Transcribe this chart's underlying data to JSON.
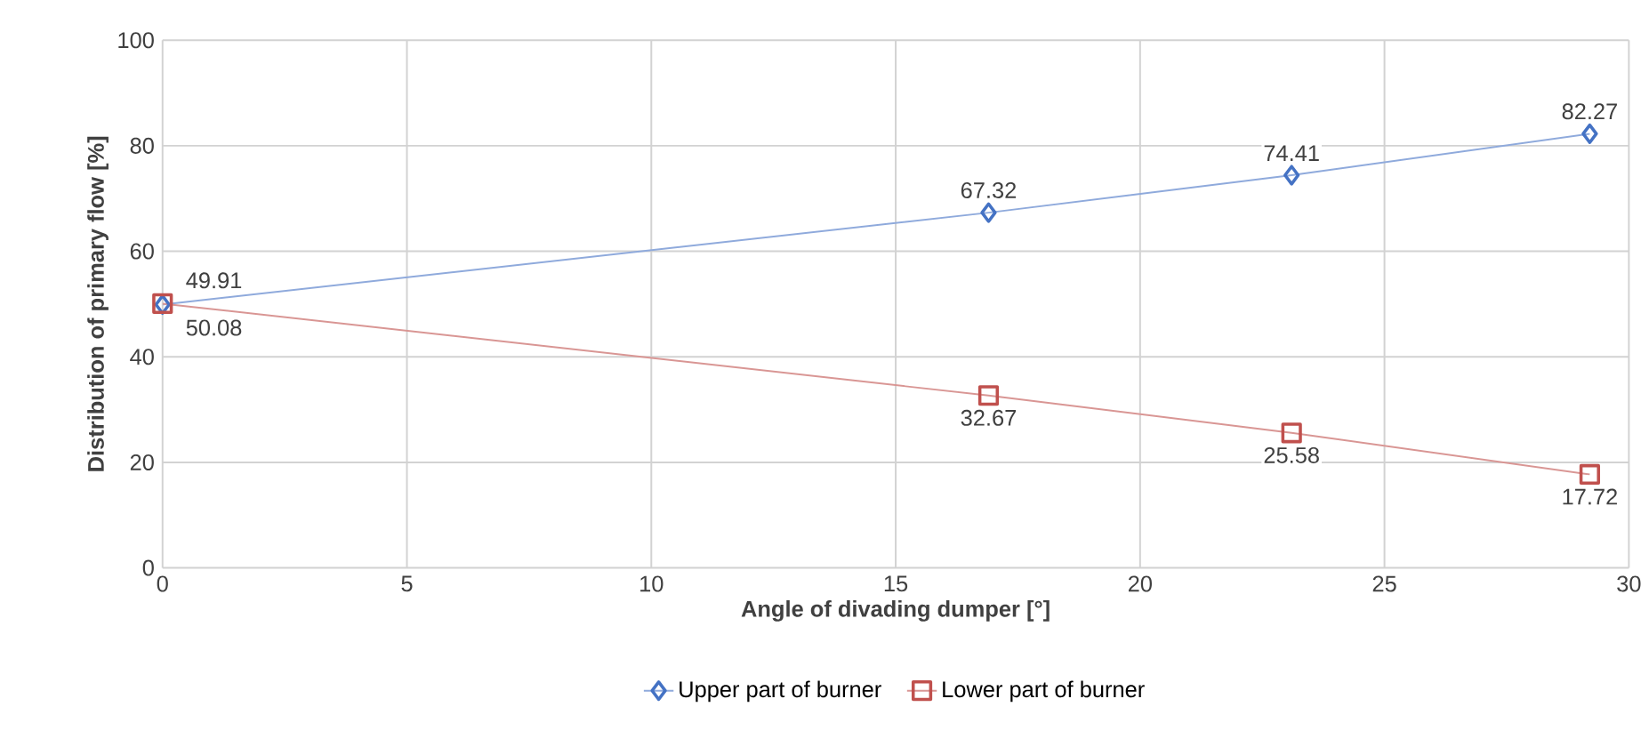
{
  "chart_data": {
    "type": "line",
    "xlabel": "Angle of divading dumper [°]",
    "ylabel": "Distribution of primary flow [%]",
    "xlim": [
      0,
      30
    ],
    "ylim": [
      0,
      100
    ],
    "xticks": [
      0,
      5,
      10,
      15,
      20,
      25,
      30
    ],
    "yticks": [
      0,
      20,
      40,
      60,
      80,
      100
    ],
    "grid": true,
    "legend": "bottom",
    "data_labels": true,
    "series": [
      {
        "name": "Upper part of burner",
        "color": "#4472c4",
        "marker": "diamond",
        "x": [
          0,
          16.9,
          23.1,
          29.2
        ],
        "values": [
          49.91,
          67.32,
          74.41,
          82.27
        ]
      },
      {
        "name": "Lower part of burner",
        "color": "#c0504d",
        "marker": "square",
        "x": [
          0,
          16.9,
          23.1,
          29.2
        ],
        "values": [
          50.08,
          32.67,
          25.58,
          17.72
        ]
      }
    ]
  }
}
